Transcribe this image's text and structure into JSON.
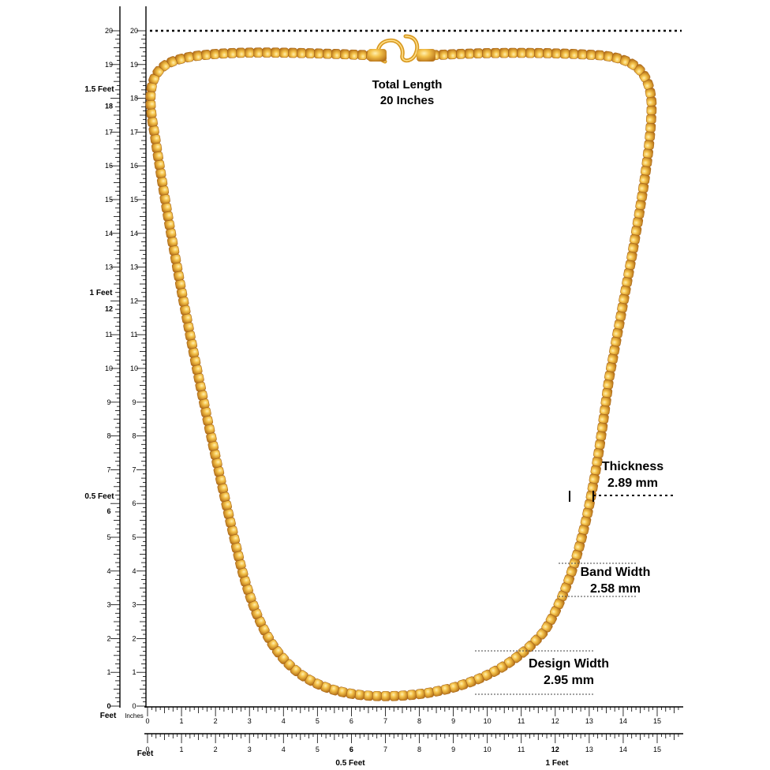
{
  "product": {
    "total_length_label": "Total Length",
    "total_length_value": "20 Inches",
    "measurements": [
      {
        "id": "thickness",
        "label": "Thickness",
        "value": "2.89 mm"
      },
      {
        "id": "band-width",
        "label": "Band Width",
        "value": "2.58 mm"
      },
      {
        "id": "design-width",
        "label": "Design Width",
        "value": "2.95 mm"
      }
    ]
  },
  "rulers": {
    "left": {
      "range": [
        0,
        20
      ],
      "labels": [
        "0",
        "1",
        "2",
        "3",
        "4",
        "5",
        "6",
        "7",
        "8",
        "9",
        "10",
        "11",
        "12",
        "13",
        "14",
        "15",
        "16",
        "17",
        "18",
        "19",
        "20"
      ],
      "feet_marks": [
        {
          "value": 6,
          "label": "0.5 Feet"
        },
        {
          "value": 12,
          "label": "1 Feet"
        },
        {
          "value": 18,
          "label": "1.5 Feet"
        }
      ]
    },
    "bottom_inner": {
      "range": [
        0,
        15
      ],
      "labels": [
        "0",
        "1",
        "2",
        "3",
        "4",
        "5",
        "6",
        "7",
        "8",
        "9",
        "10",
        "11",
        "12",
        "13",
        "14",
        "15"
      ],
      "unit_feet": "Feet",
      "unit_inches": "Inches"
    },
    "bottom_outer": {
      "range": [
        0,
        15
      ],
      "labels": [
        "0",
        "1",
        "2",
        "3",
        "4",
        "5",
        "6",
        "7",
        "8",
        "9",
        "10",
        "11",
        "12",
        "13",
        "14",
        "15"
      ],
      "feet_marks": [
        {
          "value": 6,
          "label": "0.5 Feet"
        },
        {
          "value": 12,
          "label": "1 Feet"
        }
      ],
      "unit_feet": "Feet"
    }
  },
  "colors": {
    "gold_light": "#f4c24a",
    "gold_mid": "#e0a22a",
    "gold_dark": "#b8741a",
    "ruler": "#000000"
  }
}
